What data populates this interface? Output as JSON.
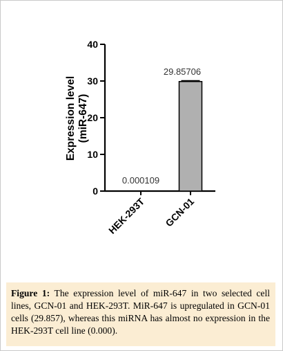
{
  "chart_data": {
    "type": "bar",
    "categories": [
      "HEK-293T",
      "GCN-01"
    ],
    "values": [
      0.000109,
      29.85706
    ],
    "value_labels": [
      "0.000109",
      "29.85706"
    ],
    "ylabel_line1": "Expression level",
    "ylabel_line2": "(miR-647)",
    "ylim": [
      0,
      40
    ],
    "yticks": [
      "0",
      "10",
      "20",
      "30",
      "40"
    ],
    "error_bars": true,
    "grid": false,
    "bar_fill": "#b0b0b0",
    "bar_stroke": "#000000"
  },
  "caption": {
    "label": "Figure 1:",
    "text": " The expression level of miR-647 in two selected cell lines, GCN-01 and HEK-293T. MiR-647 is upregulated in GCN-01 cells (29.857), whereas this miRNA has almost no expression in the HEK-293T cell line (0.000)."
  }
}
